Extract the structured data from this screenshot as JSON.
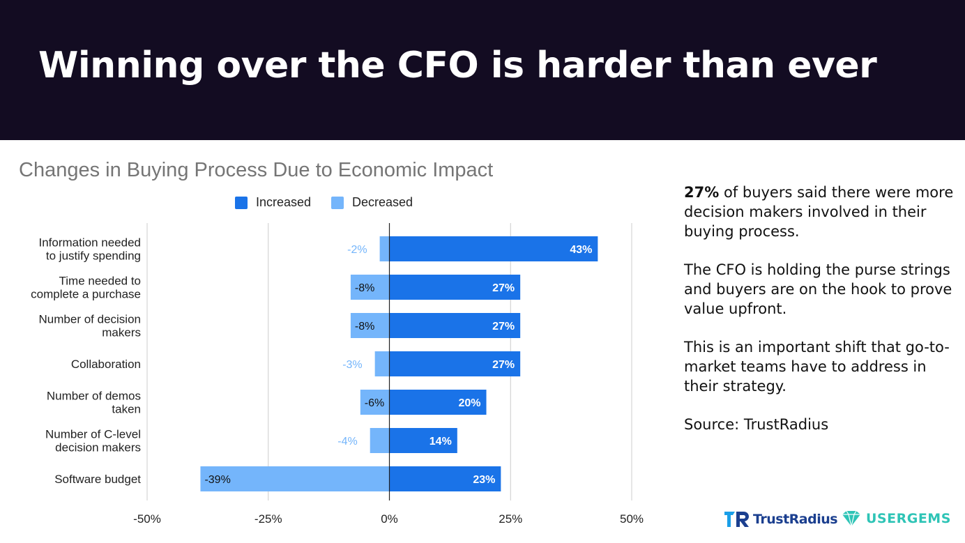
{
  "slide": {
    "title": "Winning over the CFO is harder than ever"
  },
  "side_panel": {
    "p1_bold": "27%",
    "p1_rest": " of buyers said there were more decision makers involved in their buying process.",
    "p2": "The CFO is holding the purse strings and buyers are on the hook to prove value upfront.",
    "p3": "This is an important shift that go-to-market teams have to address in their strategy.",
    "source": "Source: TrustRadius"
  },
  "logos": {
    "trustradius": "TrustRadius",
    "usergems": "USERGEMS"
  },
  "colors": {
    "header_bg": "#130c22",
    "increased": "#1a73e8",
    "decreased": "#74b5fb",
    "decreased_label": "#74b5fb",
    "trustradius": "#1b3f8f",
    "usergems": "#2ec4b6"
  },
  "chart_data": {
    "type": "bar",
    "orientation": "horizontal",
    "stacked": true,
    "title": "Changes in Buying Process Due to Economic Impact",
    "legend_position": "top",
    "categories": [
      [
        "Information needed",
        "to justify spending"
      ],
      [
        "Time needed to",
        "complete a purchase"
      ],
      [
        "Number of decision",
        "makers"
      ],
      [
        "Collaboration"
      ],
      [
        "Number of demos",
        "taken"
      ],
      [
        "Number of C-level",
        "decision makers"
      ],
      [
        "Software budget"
      ]
    ],
    "series": [
      {
        "name": "Increased",
        "values": [
          43,
          27,
          27,
          27,
          20,
          14,
          23
        ],
        "labels": [
          "43%",
          "27%",
          "27%",
          "27%",
          "20%",
          "14%",
          "23%"
        ]
      },
      {
        "name": "Decreased",
        "values": [
          -2,
          -8,
          -8,
          -3,
          -6,
          -4,
          -39
        ],
        "labels": [
          "-2%",
          "-8%",
          "-8%",
          "-3%",
          "-6%",
          "-4%",
          "-39%"
        ]
      }
    ],
    "xlim": [
      -50,
      50
    ],
    "xticks": [
      -50,
      -25,
      0,
      25,
      50
    ],
    "xtick_labels": [
      "-50%",
      "-25%",
      "0%",
      "25%",
      "50%"
    ],
    "grid": true
  }
}
